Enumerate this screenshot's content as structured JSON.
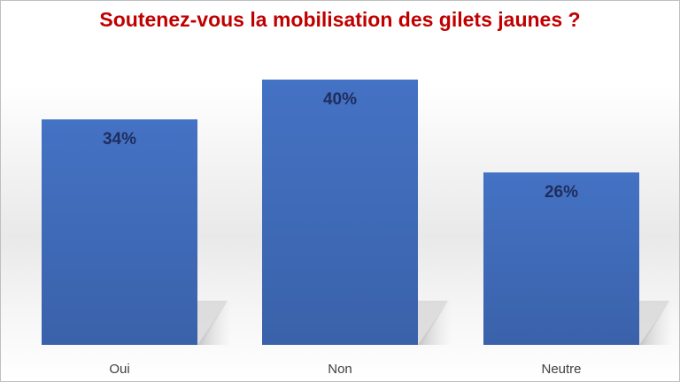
{
  "chart_data": {
    "type": "bar",
    "title": "Soutenez-vous la mobilisation des gilets jaunes ?",
    "categories": [
      "Oui",
      "Non",
      "Neutre"
    ],
    "values": [
      34,
      40,
      26
    ],
    "data_labels": [
      "34%",
      "40%",
      "26%"
    ],
    "xlabel": "",
    "ylabel": "",
    "ylim": [
      0,
      40
    ],
    "grid": false,
    "legend": "none",
    "colors": {
      "bar": "#4472c4",
      "bar_dark": "#3a62aa",
      "title": "#c00000",
      "data_label": "#1f2d5c",
      "category_label": "#404040"
    }
  }
}
